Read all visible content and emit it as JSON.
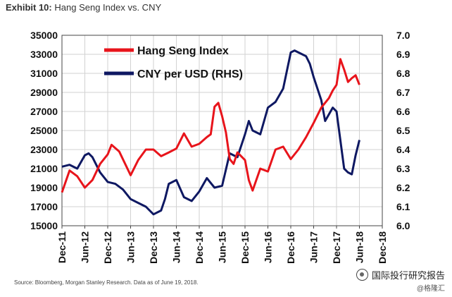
{
  "title": {
    "label": "Exhibit 10:",
    "subtitle": "Hang Seng Index vs. CNY"
  },
  "source": "Source: Bloomberg, Morgan Stanley Research. Data as of June 19, 2018.",
  "watermark": {
    "line1": "国际投行研究报告",
    "line2": "@格隆汇"
  },
  "chart_data": {
    "type": "line",
    "title": "",
    "legend_position": "top-left",
    "grid": true,
    "x_ticks": [
      "Dec-11",
      "Jun-12",
      "Dec-12",
      "Jun-13",
      "Dec-13",
      "Jun-14",
      "Dec-14",
      "Jun-15",
      "Dec-15",
      "Jun-16",
      "Dec-16",
      "Jun-17",
      "Dec-17",
      "Jun-18",
      "Dec-18"
    ],
    "y_left": {
      "min": 15000,
      "max": 35000,
      "ticks": [
        "15000",
        "17000",
        "19000",
        "21000",
        "23000",
        "25000",
        "27000",
        "29000",
        "31000",
        "33000",
        "35000"
      ]
    },
    "y_right": {
      "min": 6.0,
      "max": 7.0,
      "ticks": [
        "6.0",
        "6.1",
        "6.2",
        "6.3",
        "6.4",
        "6.5",
        "6.6",
        "6.7",
        "6.8",
        "6.9",
        "7.0"
      ]
    },
    "series": [
      {
        "name": "Hang Seng Index",
        "axis": "left",
        "color": "#e8141b",
        "x": [
          "Dec-11",
          "Feb-12",
          "Apr-12",
          "Jun-12",
          "Aug-12",
          "Oct-12",
          "Dec-12",
          "Jan-13",
          "Mar-13",
          "Jun-13",
          "Aug-13",
          "Oct-13",
          "Dec-13",
          "Feb-14",
          "Apr-14",
          "Jun-14",
          "Aug-14",
          "Oct-14",
          "Dec-14",
          "Feb-15",
          "Mar-15",
          "Apr-15",
          "May-15",
          "Jun-15",
          "Jul-15",
          "Aug-15",
          "Sep-15",
          "Oct-15",
          "Dec-15",
          "Jan-16",
          "Feb-16",
          "Apr-16",
          "Jun-16",
          "Aug-16",
          "Oct-16",
          "Dec-16",
          "Feb-17",
          "Apr-17",
          "Jun-17",
          "Aug-17",
          "Oct-17",
          "Nov-17",
          "Dec-17",
          "Jan-18",
          "Feb-18",
          "Mar-18",
          "Apr-18",
          "May-18",
          "Jun-18"
        ],
        "values": [
          18500,
          20800,
          20200,
          19000,
          19800,
          21500,
          22500,
          23500,
          22800,
          20300,
          21900,
          23000,
          23000,
          22300,
          22700,
          23100,
          24700,
          23300,
          23600,
          24300,
          24600,
          27500,
          27900,
          26500,
          24800,
          22000,
          21500,
          22700,
          21900,
          19800,
          18700,
          21000,
          20700,
          23000,
          23300,
          22000,
          23000,
          24300,
          25800,
          27400,
          28400,
          29200,
          29800,
          32500,
          31400,
          30100,
          30500,
          30800,
          29800
        ]
      },
      {
        "name": "CNY per USD (RHS)",
        "axis": "right",
        "color": "#0e1862",
        "x": [
          "Dec-11",
          "Feb-12",
          "Apr-12",
          "Jun-12",
          "Jul-12",
          "Aug-12",
          "Oct-12",
          "Dec-12",
          "Feb-13",
          "Apr-13",
          "Jun-13",
          "Aug-13",
          "Oct-13",
          "Dec-13",
          "Feb-14",
          "Mar-14",
          "Apr-14",
          "Jun-14",
          "Aug-14",
          "Oct-14",
          "Dec-14",
          "Feb-15",
          "Apr-15",
          "Jun-15",
          "Aug-15",
          "Sep-15",
          "Oct-15",
          "Dec-15",
          "Jan-16",
          "Feb-16",
          "Apr-16",
          "Jun-16",
          "Aug-16",
          "Oct-16",
          "Dec-16",
          "Jan-17",
          "Mar-17",
          "Apr-17",
          "May-17",
          "Jun-17",
          "Aug-17",
          "Sep-17",
          "Nov-17",
          "Dec-17",
          "Jan-18",
          "Feb-18",
          "Mar-18",
          "Apr-18",
          "May-18",
          "Jun-18"
        ],
        "values": [
          6.31,
          6.32,
          6.3,
          6.37,
          6.38,
          6.36,
          6.28,
          6.23,
          6.22,
          6.19,
          6.14,
          6.12,
          6.1,
          6.06,
          6.08,
          6.14,
          6.22,
          6.24,
          6.15,
          6.13,
          6.18,
          6.25,
          6.2,
          6.21,
          6.38,
          6.37,
          6.36,
          6.48,
          6.55,
          6.5,
          6.48,
          6.62,
          6.65,
          6.72,
          6.91,
          6.92,
          6.9,
          6.89,
          6.85,
          6.78,
          6.66,
          6.55,
          6.62,
          6.6,
          6.45,
          6.3,
          6.28,
          6.27,
          6.37,
          6.45
        ]
      }
    ]
  }
}
